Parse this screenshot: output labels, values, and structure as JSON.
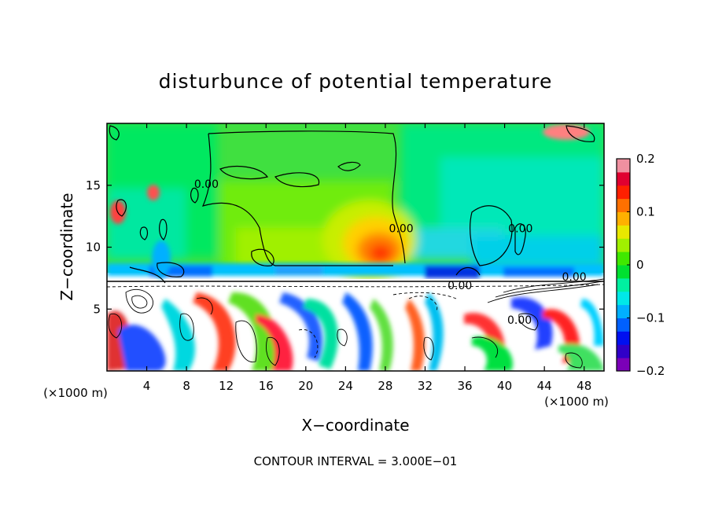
{
  "chart_data": {
    "type": "heatmap",
    "title": "disturbunce of potential temperature",
    "xlabel": "X−coordinate",
    "ylabel": "Z−coordinate",
    "x_unit_left": "(×1000 m)",
    "x_unit_right": "(×1000 m)",
    "xlim": [
      0,
      50
    ],
    "ylim": [
      0,
      20
    ],
    "x_ticks": [
      4,
      8,
      12,
      16,
      20,
      24,
      28,
      32,
      36,
      40,
      44,
      48
    ],
    "y_ticks": [
      5,
      10,
      15
    ],
    "colorbar": {
      "range": [
        -0.2,
        0.2
      ],
      "ticks": [
        {
          "value": 0.2,
          "label": "0.2"
        },
        {
          "value": 0.1,
          "label": "0.1"
        },
        {
          "value": 0,
          "label": "0"
        },
        {
          "value": -0.1,
          "label": "−0.1"
        },
        {
          "value": -0.2,
          "label": "−0.2"
        }
      ],
      "colors": [
        "#7b00b8",
        "#3000c8",
        "#0010f0",
        "#0060ff",
        "#00b0ff",
        "#00e8e8",
        "#00f0a0",
        "#00e030",
        "#40e800",
        "#a0f000",
        "#e8e800",
        "#ffb000",
        "#ff7000",
        "#ff2000",
        "#e00030",
        "#f090a0"
      ]
    },
    "contour_labels": [
      {
        "x": 10,
        "y": 14.8,
        "label": "0.00"
      },
      {
        "x": 29.6,
        "y": 11.2,
        "label": "0.00"
      },
      {
        "x": 41.6,
        "y": 11.2,
        "label": "0.00"
      },
      {
        "x": 35.5,
        "y": 6.6,
        "label": "0.00"
      },
      {
        "x": 47,
        "y": 7.3,
        "label": "0.00"
      },
      {
        "x": 41.5,
        "y": 3.8,
        "label": "0.00"
      }
    ],
    "peak": {
      "x": 27.5,
      "y": 9.3,
      "value": 0.12
    },
    "inversion_height": 7.2,
    "footnote": "CONTOUR INTERVAL = 3.000E−01"
  }
}
